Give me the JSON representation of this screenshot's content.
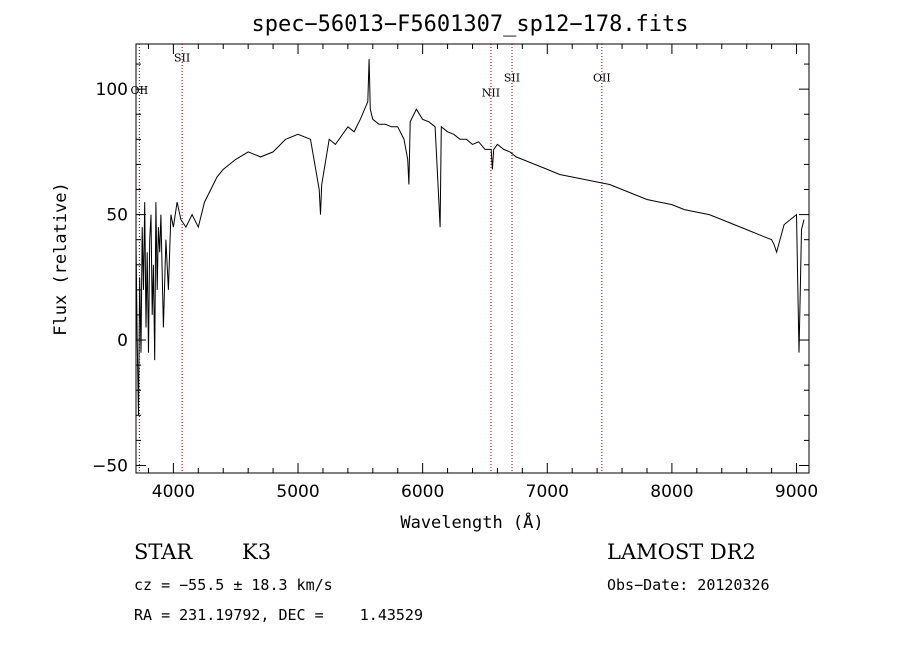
{
  "chart_data": {
    "type": "line",
    "title": "spec−56013−F5601307_sp12−178.fits",
    "xlabel": "Wavelength (Å)",
    "ylabel": "Flux (relative)",
    "xlim": [
      3700,
      9100
    ],
    "ylim": [
      -53,
      118
    ],
    "x_ticks": [
      4000,
      5000,
      6000,
      7000,
      8000,
      9000
    ],
    "x_tick_labels": [
      "4000",
      "5000",
      "6000",
      "7000",
      "8000",
      "9000"
    ],
    "y_ticks": [
      100,
      50,
      0,
      -50
    ],
    "y_tick_labels": [
      "100",
      "50",
      "0",
      "−50"
    ],
    "grid": false,
    "series": [
      {
        "x": [
          3700,
          3710,
          3720,
          3730,
          3740,
          3750,
          3760,
          3770,
          3780,
          3790,
          3800,
          3810,
          3820,
          3830,
          3840,
          3850,
          3860,
          3870,
          3880,
          3890,
          3900,
          3920,
          3940,
          3960,
          3980,
          4000,
          4030,
          4060,
          4100,
          4150,
          4200,
          4250,
          4300,
          4350,
          4400,
          4450,
          4500,
          4600,
          4700,
          4800,
          4900,
          5000,
          5100,
          5170,
          5180,
          5190,
          5250,
          5300,
          5400,
          5450,
          5500,
          5560,
          5570,
          5580,
          5590,
          5600,
          5650,
          5700,
          5750,
          5800,
          5850,
          5880,
          5890,
          5900,
          5950,
          6000,
          6050,
          6100,
          6130,
          6140,
          6150,
          6200,
          6250,
          6300,
          6350,
          6400,
          6450,
          6500,
          6550,
          6560,
          6570,
          6600,
          6650,
          6700,
          6750,
          6800,
          6900,
          7000,
          7100,
          7200,
          7300,
          7400,
          7500,
          7600,
          7700,
          7800,
          7900,
          8000,
          8100,
          8200,
          8300,
          8400,
          8500,
          8600,
          8700,
          8800,
          8820,
          8840,
          8900,
          9000,
          9020,
          9030,
          9040,
          9060
        ],
        "values": [
          40,
          0,
          -30,
          25,
          -5,
          45,
          20,
          55,
          5,
          35,
          -5,
          40,
          50,
          10,
          30,
          -8,
          55,
          20,
          45,
          35,
          50,
          5,
          40,
          20,
          50,
          45,
          55,
          48,
          45,
          50,
          45,
          55,
          60,
          65,
          68,
          70,
          72,
          75,
          73,
          75,
          80,
          82,
          80,
          60,
          50,
          62,
          80,
          78,
          85,
          83,
          88,
          95,
          112,
          92,
          90,
          88,
          86,
          86,
          85,
          85,
          80,
          72,
          62,
          87,
          92,
          88,
          87,
          85,
          55,
          45,
          85,
          83,
          82,
          80,
          80,
          78,
          79,
          76,
          76,
          68,
          76,
          78,
          76,
          75,
          73,
          72,
          70,
          68,
          66,
          65,
          64,
          63,
          62,
          60,
          58,
          56,
          55,
          54,
          52,
          51,
          50,
          48,
          46,
          44,
          42,
          40,
          38,
          35,
          46,
          50,
          -5,
          20,
          44,
          48
        ]
      }
    ],
    "spectral_lines": [
      {
        "label": "OII",
        "x": 3727,
        "label_y": 98
      },
      {
        "label": "SII",
        "x": 4070,
        "label_y": 111
      },
      {
        "label": "NII",
        "x": 6548,
        "label_y": 97
      },
      {
        "label": "SII",
        "x": 6717,
        "label_y": 103
      },
      {
        "label": "OII",
        "x": 7438,
        "label_y": 103
      }
    ]
  },
  "info": {
    "object_class": "STAR",
    "subclass": "K3",
    "survey": "LAMOST DR2",
    "cz_line": "cz = −55.5 ± 18.3 km/s",
    "obs_date_line": "Obs−Date: 20120326",
    "radec_line": "RA = 231.19792, DEC =    1.43529"
  },
  "colors": {
    "spectrum": "#000000",
    "line_markers": "#8b0000",
    "axes": "#000000"
  }
}
